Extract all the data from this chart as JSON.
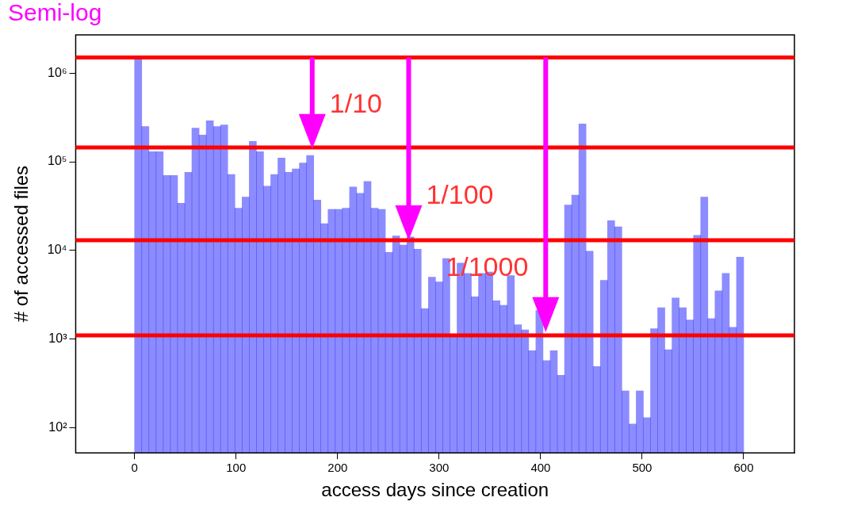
{
  "chart_data": {
    "type": "histogram",
    "title": "Semi-log",
    "xlabel": "access days since creation",
    "ylabel": "# of accessed files",
    "bins": [
      0,
      7.06,
      14.12,
      21.18,
      28.24,
      35.29,
      42.35,
      49.41,
      56.47,
      63.53,
      70.59,
      77.65,
      84.71,
      91.76,
      98.82,
      105.88,
      112.94,
      120,
      127.06,
      134.12,
      141.18,
      148.24,
      155.29,
      162.35,
      169.41,
      176.47,
      183.53,
      190.59,
      197.65,
      204.71,
      211.76,
      218.82,
      225.88,
      232.94,
      240,
      247.06,
      254.12,
      261.18,
      268.24,
      275.29,
      282.35,
      289.41,
      296.47,
      303.53,
      310.59,
      317.65,
      324.71,
      331.76,
      338.82,
      345.88,
      352.94,
      360,
      367.06,
      374.12,
      381.18,
      388.24,
      395.29,
      402.35,
      409.41,
      416.47,
      423.53,
      430.59,
      437.65,
      444.71,
      451.76,
      458.82,
      465.88,
      472.94,
      480,
      487.06,
      494.12,
      501.18,
      508.24,
      515.29,
      522.35,
      529.41,
      536.47,
      543.53,
      550.59,
      557.65,
      564.71,
      571.76,
      578.82,
      585.88,
      592.94,
      600
    ],
    "values": [
      1500000,
      250000,
      130000,
      130000,
      70000,
      70000,
      34000,
      76000,
      240000,
      200000,
      290000,
      250000,
      260000,
      72000,
      30000,
      40000,
      170000,
      130000,
      53000,
      72000,
      110000,
      76000,
      83000,
      97000,
      118000,
      37000,
      20000,
      29000,
      29000,
      30000,
      52000,
      44000,
      60000,
      30000,
      29000,
      9500,
      14600,
      11500,
      14200,
      10300,
      2200,
      5000,
      4400,
      8100,
      1060,
      7200,
      5500,
      3000,
      5500,
      5700,
      2700,
      2400,
      5200,
      1450,
      1270,
      740,
      2100,
      570,
      740,
      390,
      32500,
      42000,
      267000,
      9800,
      490,
      4600,
      21700,
      18500,
      260,
      110,
      260,
      130,
      1310,
      2260,
      760,
      2900,
      2260,
      1640,
      14800,
      40000,
      1700,
      3500,
      5500,
      1360,
      8400
    ],
    "color": "#0000ff",
    "log": "y",
    "grid": false,
    "xlim": [
      -58,
      650
    ],
    "xticks": [
      0,
      100,
      200,
      300,
      400,
      500,
      600
    ],
    "ylim": [
      52,
      2700000
    ],
    "yticks": [
      {
        "value": 100,
        "label": "10²"
      },
      {
        "value": 1000,
        "label": "10³"
      },
      {
        "value": 10000,
        "label": "10⁴"
      },
      {
        "value": 100000,
        "label": "10⁵"
      },
      {
        "value": 1000000,
        "label": "10⁶"
      }
    ],
    "ref_lines": [
      {
        "axis": "y",
        "value": 1500000,
        "color": "#ff0000"
      },
      {
        "axis": "y",
        "value": 145000,
        "color": "#ff0000"
      },
      {
        "axis": "y",
        "value": 13000,
        "color": "#ff0000"
      },
      {
        "axis": "y",
        "value": 1100,
        "color": "#ff0000"
      }
    ],
    "annotations": [
      {
        "text": "1/10",
        "x": 175,
        "y": 140000
      },
      {
        "text": "1/100",
        "x": 270,
        "y": 13000
      },
      {
        "text": "1/1000",
        "x": 405,
        "y": 1200
      }
    ]
  }
}
